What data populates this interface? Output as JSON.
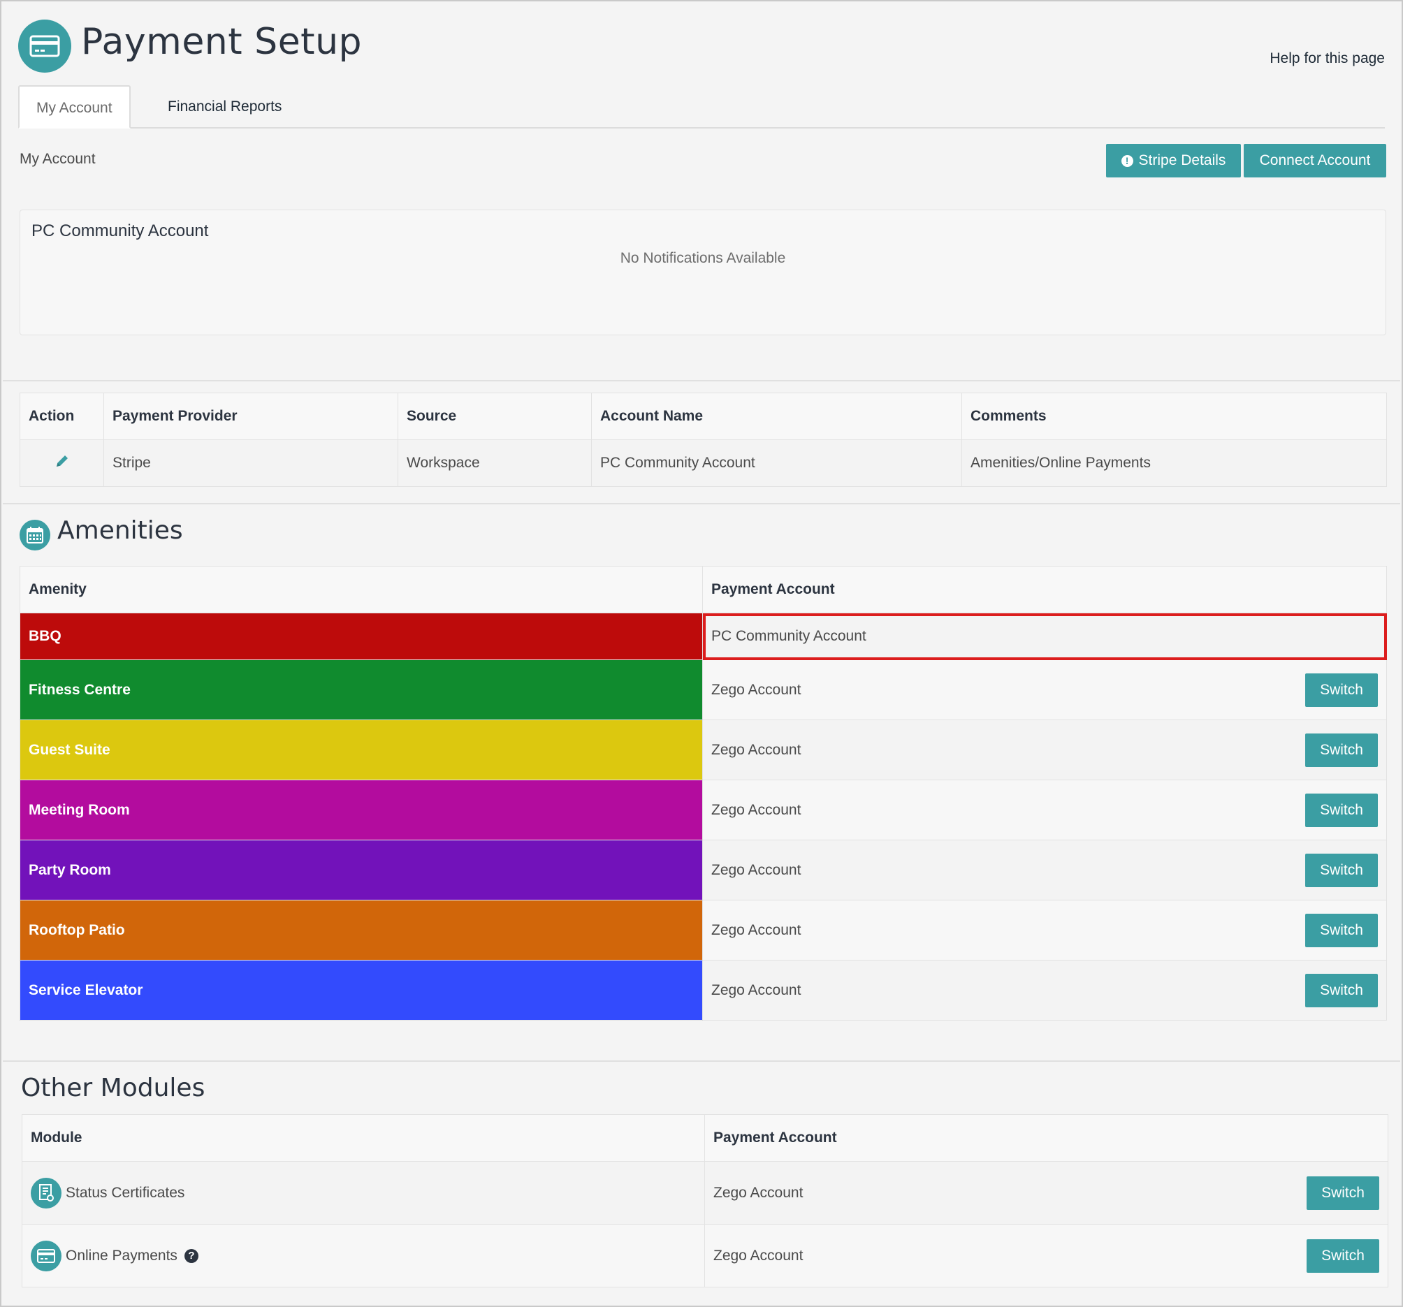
{
  "header": {
    "title": "Payment Setup",
    "help_link": "Help for this page",
    "icon": "credit-card-icon"
  },
  "tabs": [
    {
      "label": "My Account",
      "active": true
    },
    {
      "label": "Financial Reports",
      "active": false
    }
  ],
  "subheader": {
    "label": "My Account",
    "stripe_button": "Stripe Details",
    "connect_button": "Connect Account"
  },
  "notifications": {
    "account_title": "PC Community Account",
    "empty_text": "No Notifications Available"
  },
  "provider_table": {
    "headers": [
      "Action",
      "Payment Provider",
      "Source",
      "Account Name",
      "Comments"
    ],
    "rows": [
      {
        "provider": "Stripe",
        "source": "Workspace",
        "account_name": "PC Community Account",
        "comments": "Amenities/Online Payments"
      }
    ]
  },
  "amenities": {
    "title": "Amenities",
    "icon": "calendar-icon",
    "headers": [
      "Amenity",
      "Payment Account"
    ],
    "switch_label": "Switch",
    "rows": [
      {
        "name": "BBQ",
        "color": "#bd0b0b",
        "account": "PC Community Account",
        "highlighted": true,
        "has_switch": false
      },
      {
        "name": "Fitness Centre",
        "color": "#108b2e",
        "account": "Zego Account",
        "highlighted": false,
        "has_switch": true
      },
      {
        "name": "Guest Suite",
        "color": "#dcc80f",
        "account": "Zego Account",
        "highlighted": false,
        "has_switch": true
      },
      {
        "name": "Meeting Room",
        "color": "#b30c9e",
        "account": "Zego Account",
        "highlighted": false,
        "has_switch": true
      },
      {
        "name": "Party Room",
        "color": "#7212ba",
        "account": "Zego Account",
        "highlighted": false,
        "has_switch": true
      },
      {
        "name": "Rooftop Patio",
        "color": "#d1660a",
        "account": "Zego Account",
        "highlighted": false,
        "has_switch": true
      },
      {
        "name": "Service Elevator",
        "color": "#334bfd",
        "account": "Zego Account",
        "highlighted": false,
        "has_switch": true
      }
    ]
  },
  "other_modules": {
    "title": "Other Modules",
    "headers": [
      "Module",
      "Payment Account"
    ],
    "switch_label": "Switch",
    "rows": [
      {
        "name": "Status Certificates",
        "icon": "certificate-icon",
        "account": "Zego Account",
        "has_help": false
      },
      {
        "name": "Online Payments",
        "icon": "credit-card-icon",
        "account": "Zego Account",
        "has_help": true
      }
    ]
  },
  "colors": {
    "accent": "#3b9ea3",
    "highlight_border": "#dc1d1d"
  }
}
